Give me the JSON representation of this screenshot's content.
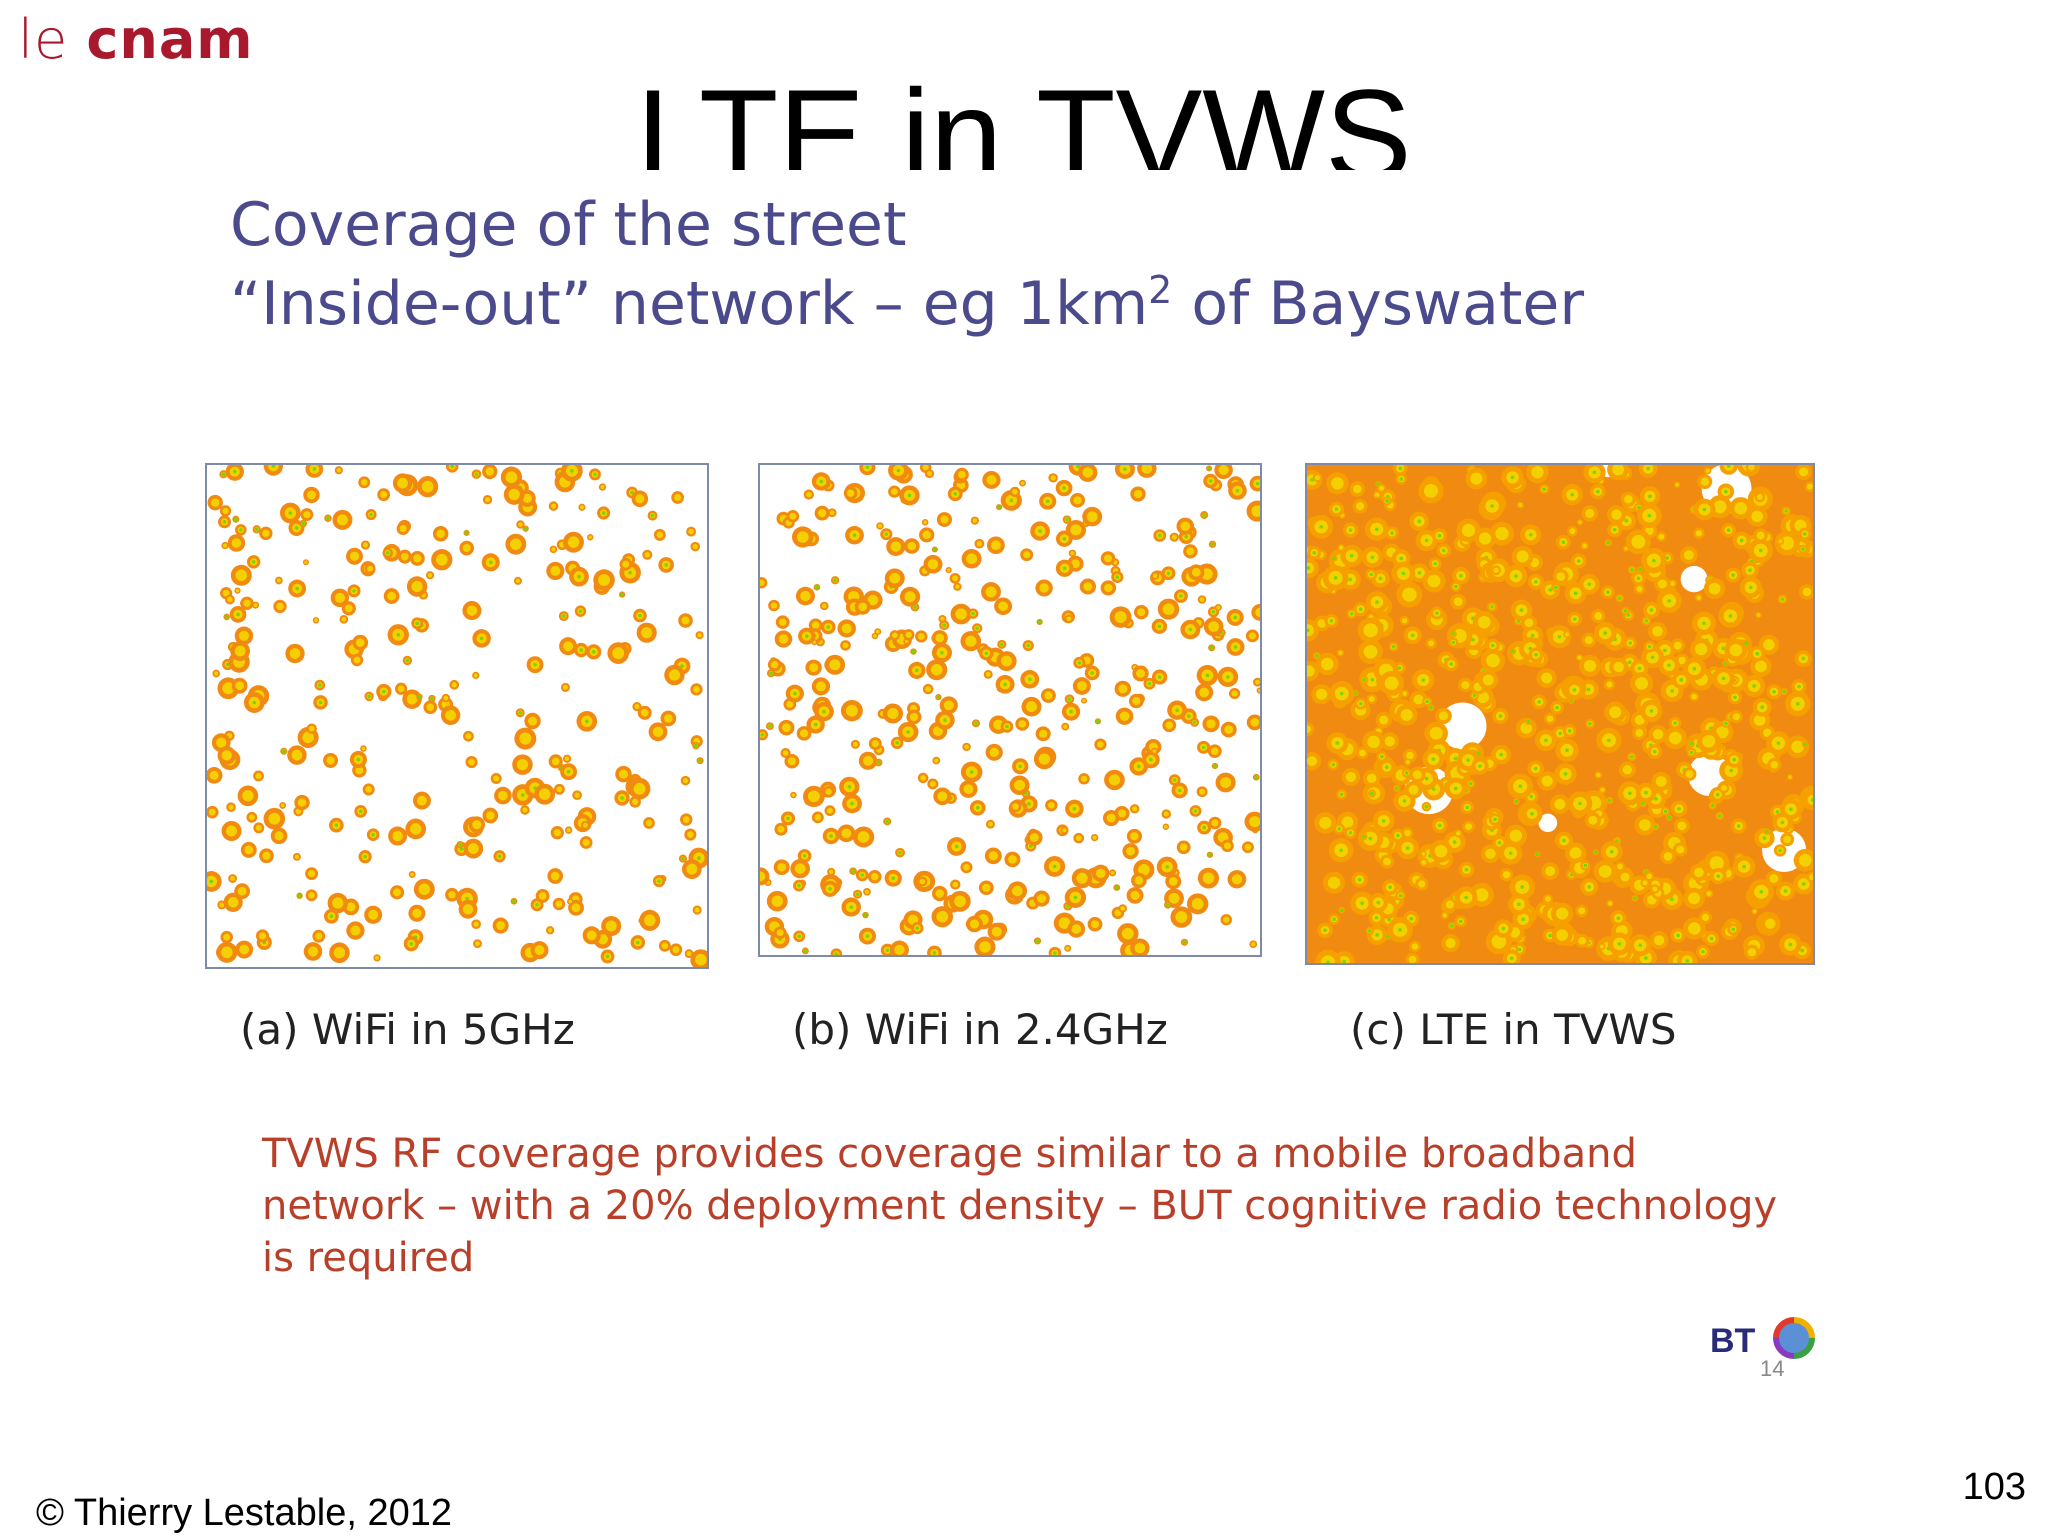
{
  "logo": {
    "le": "le",
    "cnam": "cnam"
  },
  "title": "LTE in TVWS",
  "subtitle": {
    "line1": "Coverage of the street",
    "line2_before": "“Inside-out” network – eg 1km",
    "line2_sup": "2",
    "line2_after": " of Bayswater"
  },
  "panels": [
    {
      "caption": "(a) WiFi in 5GHz",
      "coverage": 0.45
    },
    {
      "caption": "(b) WiFi in 2.4GHz",
      "coverage": 0.6
    },
    {
      "caption": "(c) LTE in TVWS",
      "coverage": 0.95
    }
  ],
  "note": "TVWS RF coverage provides coverage similar to a mobile broadband network – with a 20% deployment density –  BUT cognitive radio technology is required",
  "bt_logo": {
    "text": "BT",
    "slide_number": "14"
  },
  "copyright": "© Thierry Lestable, 2012",
  "page_number": "103",
  "colors": {
    "accent": "#a8192e",
    "subtitle": "#4a4a8c",
    "note": "#b8402a",
    "coverage_orange": "#f08a10",
    "coverage_yellow": "#f5d000",
    "coverage_green": "#7ad400"
  }
}
